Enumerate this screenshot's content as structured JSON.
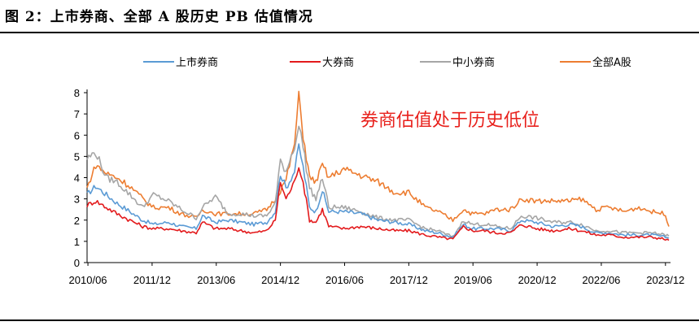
{
  "figure_title": "图 2：上市券商、全部 A 股历史 PB 估值情况",
  "chart_data": {
    "type": "line",
    "title": "图 2：上市券商、全部 A 股历史 PB 估值情况",
    "xlabel": "",
    "ylabel": "",
    "ylim": [
      0,
      8
    ],
    "yticks": [
      0,
      1,
      2,
      3,
      4,
      5,
      6,
      7,
      8
    ],
    "xlim": [
      2010.4,
      2024.0
    ],
    "xticks": [
      {
        "label": "2010/06",
        "value": 2010.42
      },
      {
        "label": "2011/12",
        "value": 2011.92
      },
      {
        "label": "2013/06",
        "value": 2013.42
      },
      {
        "label": "2014/12",
        "value": 2014.92
      },
      {
        "label": "2016/06",
        "value": 2016.42
      },
      {
        "label": "2017/12",
        "value": 2017.92
      },
      {
        "label": "2019/06",
        "value": 2019.42
      },
      {
        "label": "2020/12",
        "value": 2020.92
      },
      {
        "label": "2022/06",
        "value": 2022.42
      },
      {
        "label": "2023/12",
        "value": 2023.92
      }
    ],
    "grid": false,
    "legend_position": "top",
    "annotation": {
      "text": "券商估值处于历史低位",
      "color": "#e8211c"
    },
    "series": [
      {
        "name": "上市券商",
        "color": "#5b9bd5",
        "points": [
          [
            2010.4,
            3.2
          ],
          [
            2010.6,
            3.6
          ],
          [
            2010.85,
            3.2
          ],
          [
            2011.1,
            2.8
          ],
          [
            2011.4,
            2.4
          ],
          [
            2011.7,
            2.0
          ],
          [
            2011.95,
            1.8
          ],
          [
            2012.3,
            1.9
          ],
          [
            2012.6,
            1.7
          ],
          [
            2012.95,
            1.6
          ],
          [
            2013.1,
            2.2
          ],
          [
            2013.4,
            1.9
          ],
          [
            2013.7,
            2.0
          ],
          [
            2014.0,
            1.9
          ],
          [
            2014.3,
            1.8
          ],
          [
            2014.6,
            1.9
          ],
          [
            2014.8,
            2.4
          ],
          [
            2014.92,
            4.2
          ],
          [
            2015.05,
            3.5
          ],
          [
            2015.25,
            4.3
          ],
          [
            2015.35,
            5.5
          ],
          [
            2015.45,
            4.5
          ],
          [
            2015.6,
            2.6
          ],
          [
            2015.75,
            2.4
          ],
          [
            2015.9,
            3.4
          ],
          [
            2016.05,
            2.4
          ],
          [
            2016.4,
            2.4
          ],
          [
            2016.8,
            2.3
          ],
          [
            2017.2,
            2.0
          ],
          [
            2017.6,
            1.9
          ],
          [
            2017.92,
            1.8
          ],
          [
            2018.3,
            1.5
          ],
          [
            2018.6,
            1.4
          ],
          [
            2018.95,
            1.2
          ],
          [
            2019.2,
            1.8
          ],
          [
            2019.4,
            1.6
          ],
          [
            2019.7,
            1.6
          ],
          [
            2019.95,
            1.6
          ],
          [
            2020.3,
            1.5
          ],
          [
            2020.55,
            2.0
          ],
          [
            2020.9,
            1.9
          ],
          [
            2021.3,
            1.7
          ],
          [
            2021.7,
            1.8
          ],
          [
            2021.95,
            1.7
          ],
          [
            2022.3,
            1.4
          ],
          [
            2022.6,
            1.4
          ],
          [
            2022.95,
            1.3
          ],
          [
            2023.3,
            1.3
          ],
          [
            2023.6,
            1.3
          ],
          [
            2023.92,
            1.2
          ],
          [
            2024.0,
            1.15
          ]
        ]
      },
      {
        "name": "大券商",
        "color": "#e31a1c",
        "points": [
          [
            2010.4,
            2.7
          ],
          [
            2010.6,
            2.9
          ],
          [
            2010.85,
            2.6
          ],
          [
            2011.1,
            2.3
          ],
          [
            2011.4,
            2.0
          ],
          [
            2011.7,
            1.7
          ],
          [
            2011.95,
            1.6
          ],
          [
            2012.3,
            1.6
          ],
          [
            2012.6,
            1.5
          ],
          [
            2012.95,
            1.4
          ],
          [
            2013.1,
            1.9
          ],
          [
            2013.4,
            1.6
          ],
          [
            2013.7,
            1.6
          ],
          [
            2014.0,
            1.5
          ],
          [
            2014.3,
            1.4
          ],
          [
            2014.6,
            1.5
          ],
          [
            2014.8,
            2.0
          ],
          [
            2014.92,
            3.8
          ],
          [
            2015.05,
            3.0
          ],
          [
            2015.25,
            3.8
          ],
          [
            2015.35,
            4.6
          ],
          [
            2015.45,
            3.8
          ],
          [
            2015.6,
            2.0
          ],
          [
            2015.75,
            1.9
          ],
          [
            2015.9,
            2.5
          ],
          [
            2016.05,
            1.7
          ],
          [
            2016.4,
            1.6
          ],
          [
            2016.8,
            1.7
          ],
          [
            2017.2,
            1.6
          ],
          [
            2017.6,
            1.5
          ],
          [
            2017.92,
            1.5
          ],
          [
            2018.3,
            1.3
          ],
          [
            2018.6,
            1.2
          ],
          [
            2018.95,
            1.1
          ],
          [
            2019.2,
            1.7
          ],
          [
            2019.4,
            1.5
          ],
          [
            2019.7,
            1.5
          ],
          [
            2019.95,
            1.4
          ],
          [
            2020.3,
            1.4
          ],
          [
            2020.55,
            1.8
          ],
          [
            2020.9,
            1.6
          ],
          [
            2021.3,
            1.5
          ],
          [
            2021.7,
            1.6
          ],
          [
            2021.95,
            1.5
          ],
          [
            2022.3,
            1.3
          ],
          [
            2022.6,
            1.3
          ],
          [
            2022.95,
            1.2
          ],
          [
            2023.3,
            1.2
          ],
          [
            2023.6,
            1.2
          ],
          [
            2023.92,
            1.1
          ],
          [
            2024.0,
            1.05
          ]
        ]
      },
      {
        "name": "中小券商",
        "color": "#a6a6a6",
        "points": [
          [
            2010.4,
            4.9
          ],
          [
            2010.6,
            5.2
          ],
          [
            2010.85,
            4.0
          ],
          [
            2011.1,
            3.8
          ],
          [
            2011.4,
            3.2
          ],
          [
            2011.7,
            2.6
          ],
          [
            2011.95,
            3.2
          ],
          [
            2012.3,
            2.9
          ],
          [
            2012.6,
            2.5
          ],
          [
            2012.95,
            2.1
          ],
          [
            2013.1,
            2.6
          ],
          [
            2013.4,
            3.1
          ],
          [
            2013.7,
            2.3
          ],
          [
            2014.0,
            2.3
          ],
          [
            2014.3,
            2.2
          ],
          [
            2014.6,
            2.2
          ],
          [
            2014.8,
            2.8
          ],
          [
            2014.92,
            4.8
          ],
          [
            2015.05,
            4.3
          ],
          [
            2015.25,
            5.5
          ],
          [
            2015.35,
            6.4
          ],
          [
            2015.45,
            5.5
          ],
          [
            2015.6,
            3.5
          ],
          [
            2015.75,
            3.0
          ],
          [
            2015.9,
            4.0
          ],
          [
            2016.05,
            2.6
          ],
          [
            2016.4,
            2.6
          ],
          [
            2016.8,
            2.4
          ],
          [
            2017.2,
            2.1
          ],
          [
            2017.6,
            2.0
          ],
          [
            2017.92,
            2.0
          ],
          [
            2018.3,
            1.6
          ],
          [
            2018.6,
            1.5
          ],
          [
            2018.95,
            1.2
          ],
          [
            2019.2,
            2.0
          ],
          [
            2019.4,
            1.8
          ],
          [
            2019.7,
            1.8
          ],
          [
            2019.95,
            1.7
          ],
          [
            2020.3,
            1.6
          ],
          [
            2020.55,
            2.2
          ],
          [
            2020.9,
            2.1
          ],
          [
            2021.3,
            1.9
          ],
          [
            2021.7,
            1.9
          ],
          [
            2021.95,
            1.8
          ],
          [
            2022.3,
            1.5
          ],
          [
            2022.6,
            1.5
          ],
          [
            2022.95,
            1.4
          ],
          [
            2023.3,
            1.4
          ],
          [
            2023.6,
            1.4
          ],
          [
            2023.92,
            1.3
          ],
          [
            2024.0,
            1.25
          ]
        ]
      },
      {
        "name": "全部A股",
        "color": "#ed7d31",
        "points": [
          [
            2010.4,
            3.5
          ],
          [
            2010.6,
            4.6
          ],
          [
            2010.85,
            4.2
          ],
          [
            2011.1,
            4.0
          ],
          [
            2011.4,
            3.6
          ],
          [
            2011.7,
            3.0
          ],
          [
            2011.95,
            2.6
          ],
          [
            2012.3,
            2.6
          ],
          [
            2012.6,
            2.3
          ],
          [
            2012.95,
            2.1
          ],
          [
            2013.1,
            2.5
          ],
          [
            2013.4,
            2.3
          ],
          [
            2013.7,
            2.3
          ],
          [
            2014.0,
            2.3
          ],
          [
            2014.3,
            2.3
          ],
          [
            2014.6,
            2.5
          ],
          [
            2014.8,
            3.0
          ],
          [
            2014.92,
            3.4
          ],
          [
            2015.05,
            3.9
          ],
          [
            2015.25,
            5.6
          ],
          [
            2015.35,
            7.8
          ],
          [
            2015.45,
            6.0
          ],
          [
            2015.6,
            4.0
          ],
          [
            2015.75,
            3.8
          ],
          [
            2015.9,
            4.6
          ],
          [
            2016.05,
            4.0
          ],
          [
            2016.4,
            4.4
          ],
          [
            2016.8,
            4.1
          ],
          [
            2017.2,
            3.8
          ],
          [
            2017.6,
            3.3
          ],
          [
            2017.92,
            3.3
          ],
          [
            2018.3,
            2.6
          ],
          [
            2018.6,
            2.4
          ],
          [
            2018.95,
            2.0
          ],
          [
            2019.2,
            2.5
          ],
          [
            2019.4,
            2.3
          ],
          [
            2019.7,
            2.3
          ],
          [
            2019.95,
            2.5
          ],
          [
            2020.3,
            2.5
          ],
          [
            2020.55,
            3.0
          ],
          [
            2020.9,
            2.9
          ],
          [
            2021.3,
            2.9
          ],
          [
            2021.7,
            2.9
          ],
          [
            2021.95,
            3.0
          ],
          [
            2022.3,
            2.5
          ],
          [
            2022.6,
            2.6
          ],
          [
            2022.95,
            2.4
          ],
          [
            2023.3,
            2.6
          ],
          [
            2023.6,
            2.4
          ],
          [
            2023.92,
            2.3
          ],
          [
            2024.0,
            1.7
          ]
        ]
      }
    ]
  }
}
